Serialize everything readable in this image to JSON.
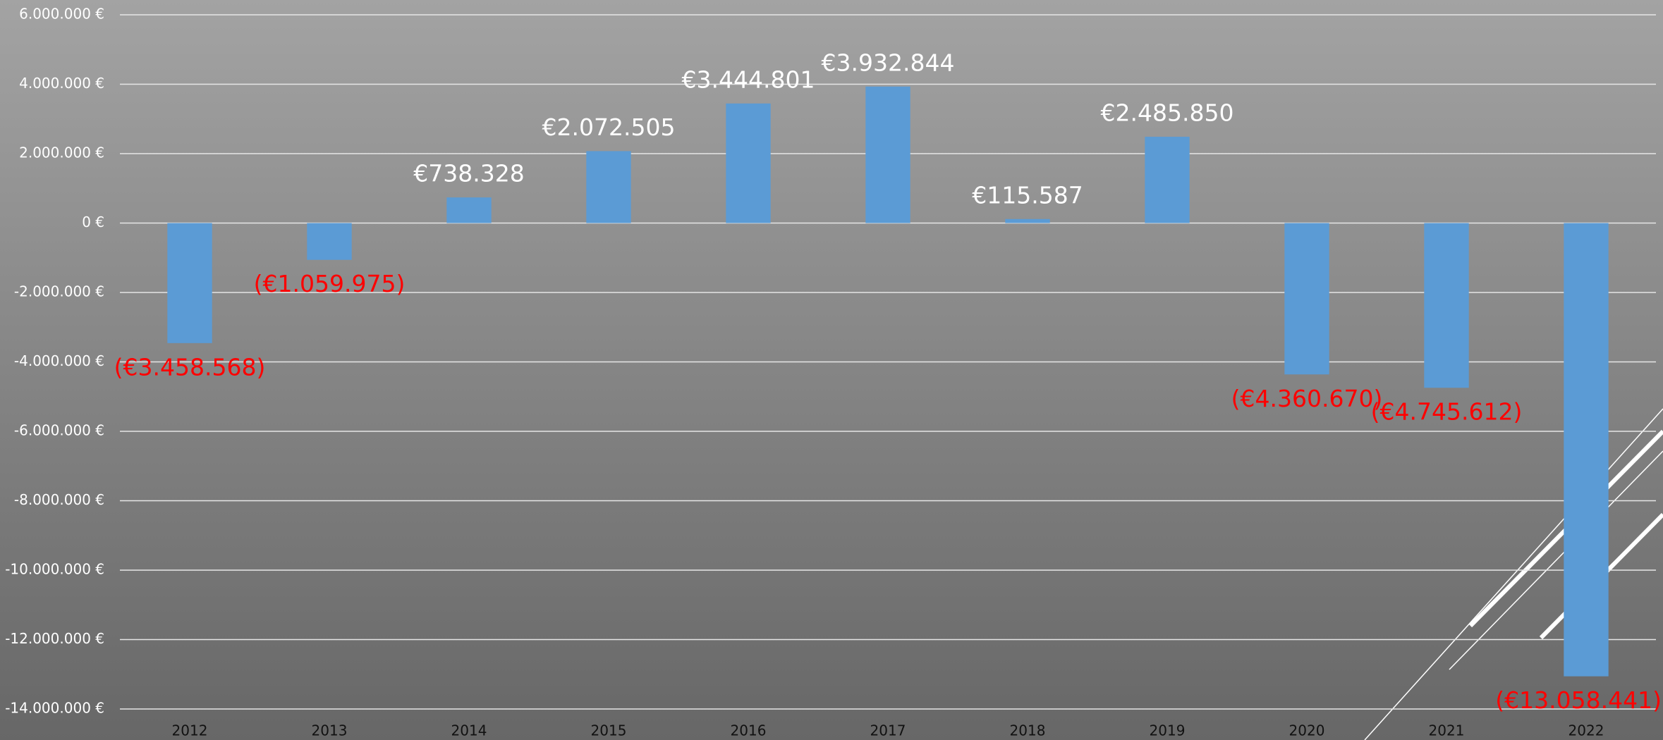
{
  "chart_data": {
    "type": "bar",
    "categories": [
      "2012",
      "2013",
      "2014",
      "2015",
      "2016",
      "2017",
      "2018",
      "2019",
      "2020",
      "2021",
      "2022"
    ],
    "values": [
      -3458568,
      -1059975,
      738328,
      2072505,
      3444801,
      3932844,
      115587,
      2485850,
      -4360670,
      -4745612,
      -13058441
    ],
    "value_labels": [
      "(€3.458.568)",
      "(€1.059.975)",
      "€738.328",
      "€2.072.505",
      "€3.444.801",
      "€3.932.844",
      "€115.587",
      "€2.485.850",
      "(€4.360.670)",
      "(€4.745.612)",
      "(€13.058.441)"
    ],
    "color": "#5b9bd5",
    "positive_label_color": "#ffffff",
    "negative_label_color": "#ff0000",
    "ylim": [
      -14000000,
      6000000
    ],
    "yticks": [
      {
        "value": -14000000,
        "label": "-14.000.000 €"
      },
      {
        "value": -12000000,
        "label": "-12.000.000 €"
      },
      {
        "value": -10000000,
        "label": "-10.000.000 €"
      },
      {
        "value": -8000000,
        "label": "-8.000.000 €"
      },
      {
        "value": -6000000,
        "label": "-6.000.000 €"
      },
      {
        "value": -4000000,
        "label": "-4.000.000 €"
      },
      {
        "value": -2000000,
        "label": "-2.000.000 €"
      },
      {
        "value": 0,
        "label": "0 €"
      },
      {
        "value": 2000000,
        "label": "2.000.000 €"
      },
      {
        "value": 4000000,
        "label": "4.000.000 €"
      },
      {
        "value": 6000000,
        "label": "6.000.000 €"
      }
    ],
    "grid": true
  }
}
